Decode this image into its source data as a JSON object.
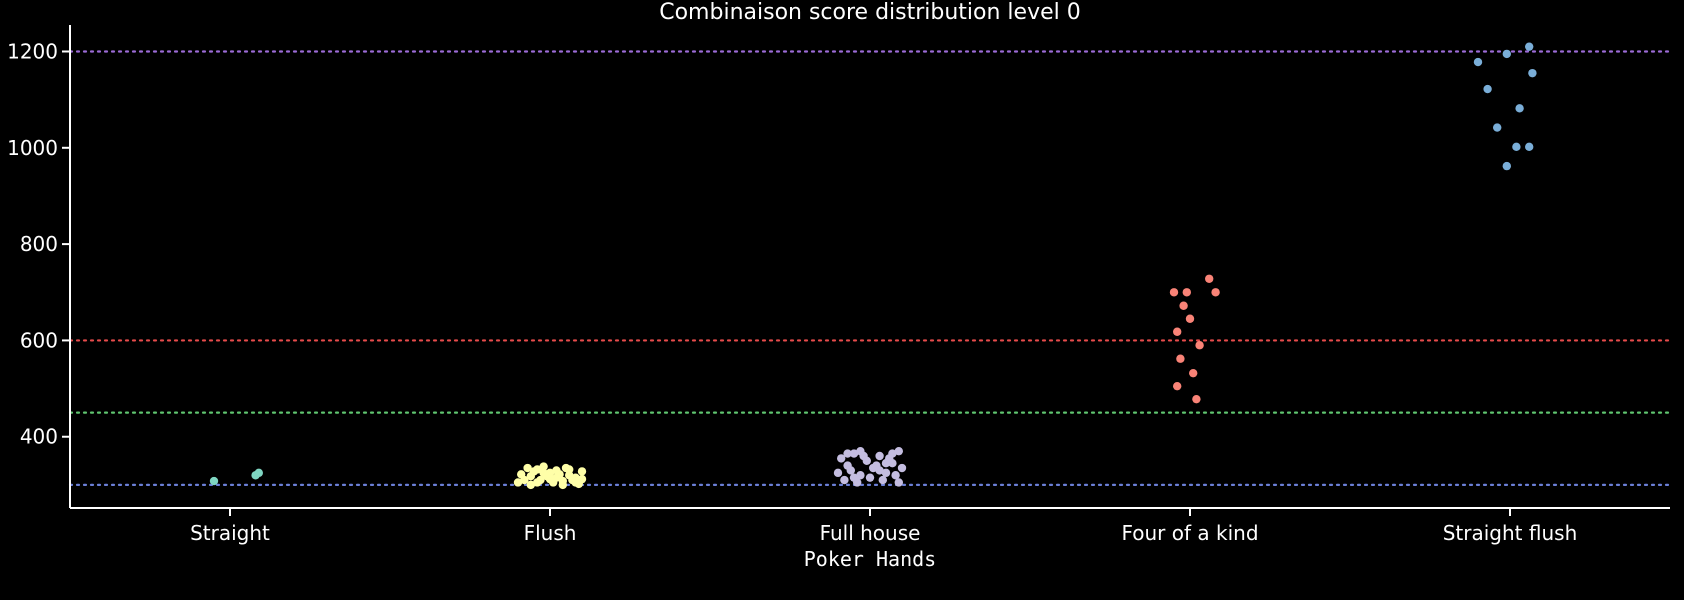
{
  "chart_data": {
    "type": "scatter",
    "title": "Combinaison score distribution level 0",
    "xlabel": "Poker Hands",
    "ylabel": "",
    "categories": [
      "Straight",
      "Flush",
      "Full house",
      "Four of a kind",
      "Straight flush"
    ],
    "ylim": [
      252,
      1255
    ],
    "yticks": [
      400,
      600,
      800,
      1000,
      1200
    ],
    "grid": false,
    "reference_lines": [
      {
        "value": 300,
        "color": "#6b7fd7"
      },
      {
        "value": 450,
        "color": "#5fc46f"
      },
      {
        "value": 600,
        "color": "#e64b4b"
      },
      {
        "value": 1200,
        "color": "#9b6bd6"
      }
    ],
    "series": [
      {
        "category": "Straight",
        "color": "#7fd6c2",
        "points": [
          [
            -0.05,
            308
          ],
          [
            0.08,
            320
          ],
          [
            0.09,
            325
          ]
        ]
      },
      {
        "category": "Flush",
        "color": "#ffffa8",
        "points": [
          [
            -0.08,
            310
          ],
          [
            -0.06,
            318
          ],
          [
            -0.04,
            305
          ],
          [
            -0.02,
            325
          ],
          [
            0.0,
            312
          ],
          [
            0.02,
            330
          ],
          [
            0.04,
            308
          ],
          [
            0.06,
            320
          ],
          [
            0.08,
            315
          ],
          [
            0.1,
            328
          ],
          [
            -0.09,
            322
          ],
          [
            -0.07,
            335
          ],
          [
            -0.05,
            328
          ],
          [
            -0.03,
            310
          ],
          [
            -0.01,
            318
          ],
          [
            0.01,
            305
          ],
          [
            0.03,
            322
          ],
          [
            0.05,
            335
          ],
          [
            0.07,
            310
          ],
          [
            0.09,
            302
          ],
          [
            -0.1,
            305
          ],
          [
            -0.02,
            338
          ],
          [
            0.04,
            300
          ],
          [
            0.06,
            332
          ],
          [
            -0.06,
            300
          ],
          [
            0.0,
            325
          ],
          [
            0.02,
            315
          ],
          [
            -0.04,
            332
          ],
          [
            0.08,
            305
          ],
          [
            0.1,
            312
          ]
        ]
      },
      {
        "category": "Full house",
        "color": "#c4bde0",
        "points": [
          [
            -0.09,
            355
          ],
          [
            -0.07,
            340
          ],
          [
            -0.05,
            365
          ],
          [
            -0.03,
            320
          ],
          [
            -0.01,
            350
          ],
          [
            0.01,
            335
          ],
          [
            0.03,
            360
          ],
          [
            0.05,
            325
          ],
          [
            0.07,
            345
          ],
          [
            0.09,
            370
          ],
          [
            -0.08,
            310
          ],
          [
            -0.06,
            330
          ],
          [
            -0.04,
            305
          ],
          [
            -0.02,
            360
          ],
          [
            0.0,
            315
          ],
          [
            0.02,
            340
          ],
          [
            0.04,
            310
          ],
          [
            0.06,
            355
          ],
          [
            0.08,
            320
          ],
          [
            0.1,
            335
          ],
          [
            -0.1,
            325
          ],
          [
            -0.03,
            370
          ],
          [
            0.05,
            345
          ],
          [
            0.09,
            305
          ],
          [
            -0.07,
            365
          ],
          [
            0.03,
            330
          ],
          [
            -0.05,
            315
          ],
          [
            0.07,
            365
          ]
        ]
      },
      {
        "category": "Four of a kind",
        "color": "#f98377",
        "points": [
          [
            -0.05,
            700
          ],
          [
            -0.01,
            700
          ],
          [
            0.06,
            728
          ],
          [
            0.08,
            700
          ],
          [
            -0.02,
            672
          ],
          [
            0.0,
            645
          ],
          [
            -0.04,
            618
          ],
          [
            0.03,
            590
          ],
          [
            -0.03,
            562
          ],
          [
            0.01,
            532
          ],
          [
            -0.04,
            505
          ],
          [
            0.02,
            478
          ]
        ]
      },
      {
        "category": "Straight flush",
        "color": "#7aaed8",
        "points": [
          [
            -0.1,
            1178
          ],
          [
            -0.01,
            1195
          ],
          [
            0.06,
            1210
          ],
          [
            -0.07,
            1122
          ],
          [
            0.07,
            1155
          ],
          [
            0.03,
            1082
          ],
          [
            -0.04,
            1042
          ],
          [
            0.02,
            1002
          ],
          [
            0.06,
            1002
          ],
          [
            -0.01,
            962
          ]
        ]
      }
    ]
  }
}
